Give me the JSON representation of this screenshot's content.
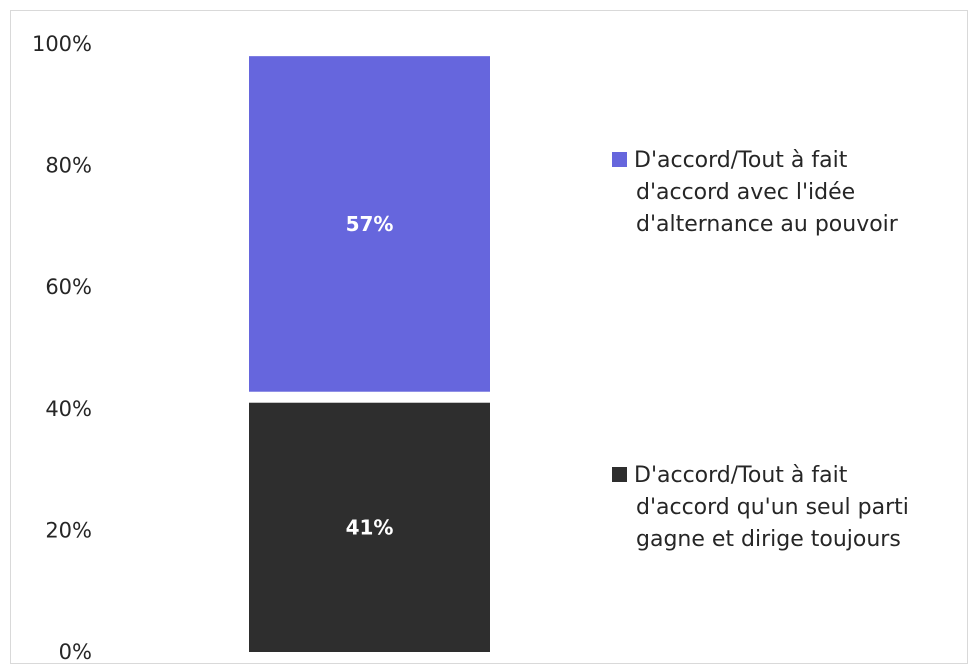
{
  "chart_data": {
    "type": "bar",
    "stacked": true,
    "categories": [
      ""
    ],
    "series": [
      {
        "name": "D'accord/Tout à fait d'accord qu'un seul parti gagne et dirige toujours",
        "values": [
          41
        ],
        "label": "41%",
        "color": "#2e2e2e",
        "legend_lines": [
          "D'accord/Tout à fait",
          "d'accord qu'un seul parti",
          "gagne et dirige toujours"
        ]
      },
      {
        "name": "D'accord/Tout à fait d'accord avec l'idée d'alternance au pouvoir",
        "values": [
          57
        ],
        "label": "57%",
        "color": "#6666dd",
        "legend_lines": [
          "D'accord/Tout à fait",
          "d'accord avec l'idée",
          "d'alternance au pouvoir"
        ]
      }
    ],
    "y_ticks": [
      "0%",
      "20%",
      "40%",
      "60%",
      "80%",
      "100%"
    ],
    "ylim": [
      0,
      100
    ],
    "grid": false,
    "legend_position": "right"
  }
}
